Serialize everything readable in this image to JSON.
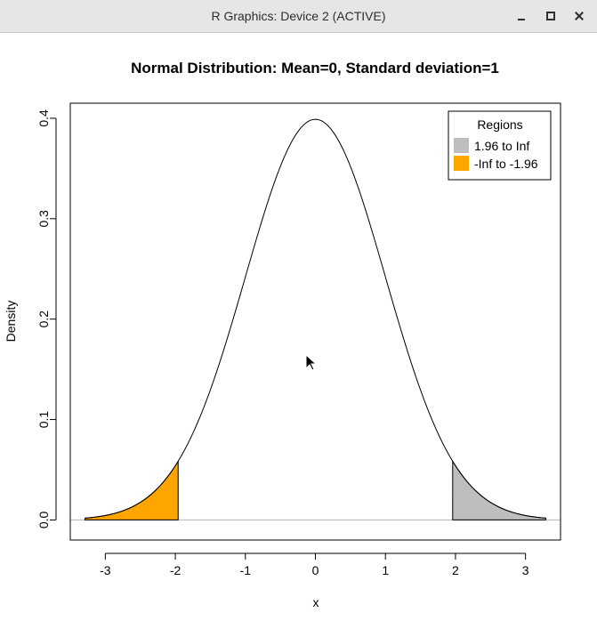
{
  "window": {
    "title": "R Graphics: Device 2 (ACTIVE)"
  },
  "colors": {
    "left_tail": "#FFA500",
    "right_tail": "#BEBEBE",
    "baseline": "#BEBEBE"
  },
  "chart_data": {
    "type": "area",
    "title": "Normal Distribution:  Mean=0, Standard deviation=1",
    "xlabel": "x",
    "ylabel": "Density",
    "mean": 0,
    "sd": 1,
    "curve_x_range": [
      -3.29,
      3.29
    ],
    "xlim": [
      -3.5,
      3.5
    ],
    "ylim": [
      -0.02,
      0.415
    ],
    "x_ticks": [
      -3,
      -2,
      -1,
      0,
      1,
      2,
      3
    ],
    "x_tick_labels": [
      "-3",
      "-2",
      "-1",
      "0",
      "1",
      "2",
      "3"
    ],
    "y_ticks": [
      0.0,
      0.1,
      0.2,
      0.3,
      0.4
    ],
    "y_tick_labels": [
      "0.0",
      "0.1",
      "0.2",
      "0.3",
      "0.4"
    ],
    "regions": [
      {
        "name": "1.96 to Inf",
        "from": 1.96,
        "to": 3.29,
        "color": "#BEBEBE"
      },
      {
        "name": "-Inf to -1.96",
        "from": -3.29,
        "to": -1.96,
        "color": "#FFA500"
      }
    ],
    "legend": {
      "title": "Regions",
      "position": "top-right",
      "entries": [
        "1.96 to Inf",
        "-Inf to -1.96"
      ]
    }
  }
}
